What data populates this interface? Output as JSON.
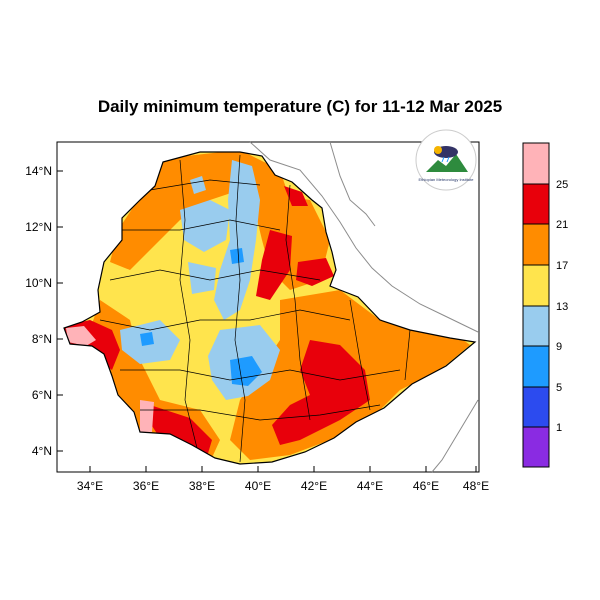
{
  "title": "Daily minimum temperature (C) for 11-12 Mar 2025",
  "map": {
    "lat_ticks": [
      "14°N",
      "12°N",
      "10°N",
      "8°N",
      "6°N",
      "4°N"
    ],
    "lon_ticks": [
      "34°E",
      "36°E",
      "38°E",
      "40°E",
      "42°E",
      "44°E",
      "46°E",
      "48°E"
    ],
    "lon_range": [
      32.9,
      48.2
    ],
    "lat_range": [
      3.1,
      14.9
    ],
    "logo_text": "Ethiopian Meteorology Institute"
  },
  "colorbar": {
    "labels": [
      "25",
      "21",
      "17",
      "13",
      "9",
      "5",
      "1"
    ],
    "colors": [
      "#FFB3B8",
      "#E8000B",
      "#FF8C00",
      "#FFE44D",
      "#99CCEE",
      "#1E9BFF",
      "#2C4BEF",
      "#8A2BE2"
    ],
    "bins_top_to_bottom": [
      ">25",
      "21-25",
      "17-21",
      "13-17",
      "9-13",
      "5-9",
      "1-5",
      "<1"
    ]
  },
  "colors": {
    "coast": "#8c8c8c",
    "border": "#000000"
  }
}
